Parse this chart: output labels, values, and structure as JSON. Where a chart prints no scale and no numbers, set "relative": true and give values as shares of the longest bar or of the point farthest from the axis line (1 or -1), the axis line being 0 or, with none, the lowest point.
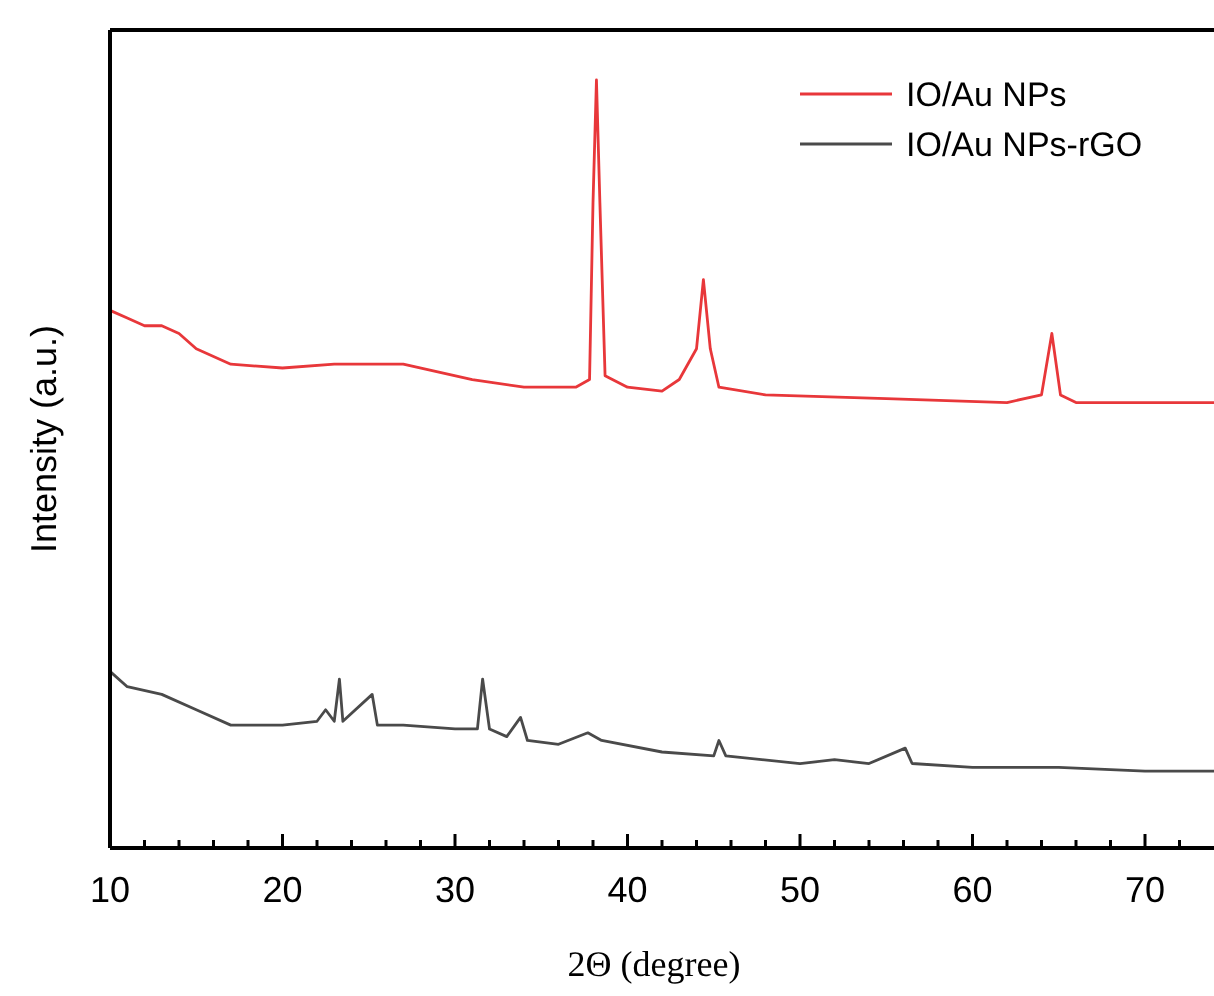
{
  "chart_data": {
    "type": "line",
    "relative": true,
    "xlabel": "2Θ (degree)",
    "ylabel": "Intensity (a.u.)",
    "xlim": [
      10,
      74
    ],
    "xticks": [
      10,
      {
        "value": 12,
        "label": null
      },
      {
        "value": 14,
        "label": null
      },
      {
        "value": 16,
        "label": null
      },
      {
        "value": 18,
        "label": null
      },
      20,
      {
        "value": 22,
        "label": null
      },
      {
        "value": 24,
        "label": null
      },
      {
        "value": 26,
        "label": null
      },
      {
        "value": 28,
        "label": null
      },
      30,
      {
        "value": 32,
        "label": null
      },
      {
        "value": 34,
        "label": null
      },
      {
        "value": 36,
        "label": null
      },
      {
        "value": 38,
        "label": null
      },
      40,
      {
        "value": 42,
        "label": null
      },
      {
        "value": 44,
        "label": null
      },
      {
        "value": 46,
        "label": null
      },
      {
        "value": 48,
        "label": null
      },
      50,
      {
        "value": 52,
        "label": null
      },
      {
        "value": 54,
        "label": null
      },
      {
        "value": 56,
        "label": null
      },
      {
        "value": 58,
        "label": null
      },
      60,
      {
        "value": 62,
        "label": null
      },
      {
        "value": 64,
        "label": null
      },
      {
        "value": 66,
        "label": null
      },
      {
        "value": 68,
        "label": null
      },
      70,
      {
        "value": 72,
        "label": null
      }
    ],
    "legend": "top right",
    "grid": false,
    "marker": "none",
    "line_style": "solid",
    "series": [
      {
        "name": "IO/Au NPs",
        "color": "#e8373a",
        "x": [
          10,
          11,
          12,
          13,
          14,
          15,
          17,
          20,
          23,
          25,
          27,
          29,
          31,
          34,
          37,
          37.8,
          38,
          38.2,
          38.4,
          38.7,
          40,
          42,
          43,
          44,
          44.4,
          44.8,
          45.3,
          48,
          55,
          62,
          64,
          64.6,
          65.1,
          66,
          70,
          74
        ],
        "values": [
          0.7,
          0.69,
          0.68,
          0.68,
          0.67,
          0.65,
          0.63,
          0.625,
          0.63,
          0.63,
          0.63,
          0.62,
          0.61,
          0.6,
          0.6,
          0.61,
          0.84,
          1,
          0.84,
          0.615,
          0.6,
          0.595,
          0.61,
          0.65,
          0.74,
          0.65,
          0.6,
          0.59,
          0.585,
          0.58,
          0.59,
          0.67,
          0.59,
          0.58,
          0.58,
          0.58
        ]
      },
      {
        "name": "IO/Au NPs-rGO",
        "color": "#4a4a4a",
        "x": [
          10,
          11,
          13,
          15,
          17,
          20,
          22,
          22.5,
          23,
          23.3,
          23.5,
          25.2,
          25.5,
          27,
          30,
          31.3,
          31.6,
          32,
          33,
          33.8,
          34.2,
          36,
          37.7,
          38.5,
          42,
          45,
          45.3,
          45.7,
          50,
          52,
          54,
          56.1,
          56.5,
          60,
          65,
          70,
          74
        ],
        "values": [
          0.23,
          0.21,
          0.2,
          0.18,
          0.16,
          0.16,
          0.165,
          0.18,
          0.165,
          0.22,
          0.165,
          0.2,
          0.16,
          0.16,
          0.155,
          0.155,
          0.22,
          0.155,
          0.145,
          0.17,
          0.14,
          0.135,
          0.15,
          0.14,
          0.125,
          0.12,
          0.14,
          0.12,
          0.11,
          0.115,
          0.11,
          0.13,
          0.11,
          0.105,
          0.105,
          0.1,
          0.1
        ]
      }
    ]
  }
}
